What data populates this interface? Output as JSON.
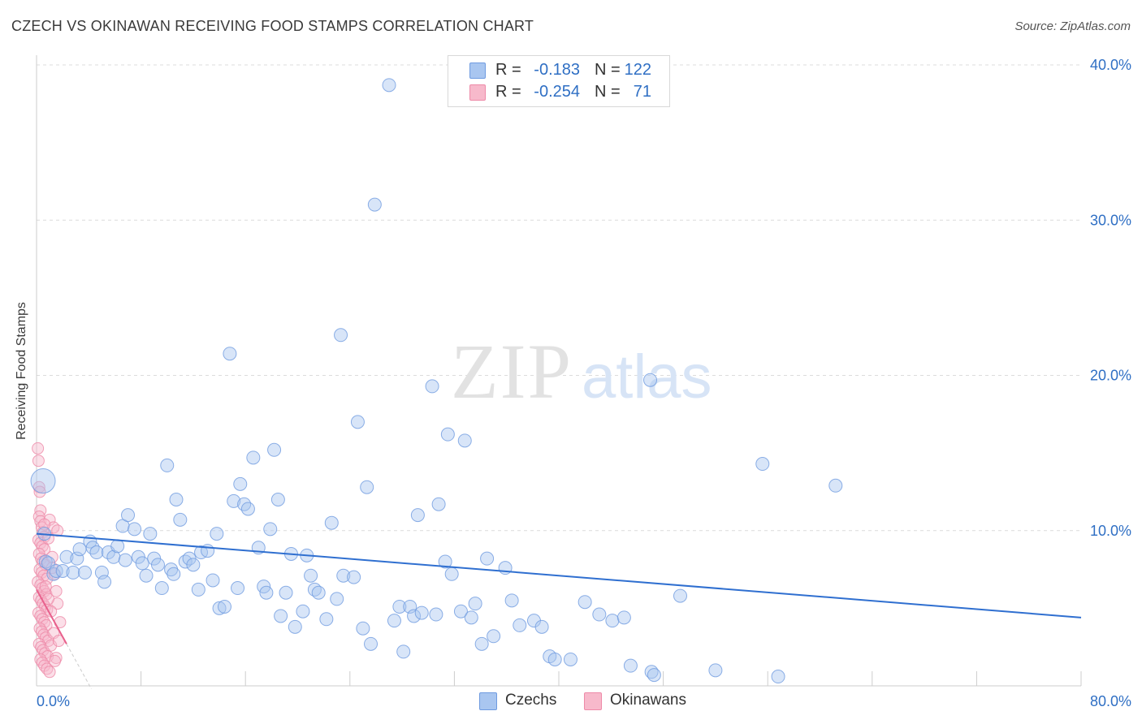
{
  "title": "CZECH VS OKINAWAN RECEIVING FOOD STAMPS CORRELATION CHART",
  "source": "Source: ZipAtlas.com",
  "watermark": {
    "zip": "ZIP",
    "atlas": "atlas"
  },
  "legend": {
    "rows": [
      {
        "r_label": "R =",
        "r_value": "-0.183",
        "n_label": "N =",
        "n_value": "122",
        "color": "#a9c6f0",
        "border": "#6f9be0"
      },
      {
        "r_label": "R =",
        "r_value": "-0.254",
        "n_label": "N =",
        "n_value": "71",
        "color": "#f7b9cb",
        "border": "#ee8aa8"
      }
    ]
  },
  "bottom_legend": [
    {
      "label": "Czechs",
      "color": "#a9c6f0",
      "border": "#6f9be0"
    },
    {
      "label": "Okinawans",
      "color": "#f7b9cb",
      "border": "#ee8aa8"
    }
  ],
  "chart_data": {
    "type": "scatter",
    "title": "CZECH VS OKINAWAN RECEIVING FOOD STAMPS CORRELATION CHART",
    "xlabel": "",
    "ylabel": "Receiving Food Stamps",
    "xlim": [
      0,
      80
    ],
    "ylim": [
      0,
      40
    ],
    "x_tick_labels": [
      "0.0%",
      "80.0%"
    ],
    "y_ticks": [
      10,
      20,
      30,
      40
    ],
    "y_tick_labels": [
      "10.0%",
      "20.0%",
      "30.0%",
      "40.0%"
    ],
    "grid": true,
    "legend_position": "top-center",
    "colors": {
      "czechs": "#6f9be0",
      "czechs_fill": "#a9c6f0",
      "czechs_line": "#2f6fd0",
      "okinawans": "#ee8aa8",
      "okinawans_fill": "#f7b9cb",
      "okinawans_line": "#e8608c",
      "axis_text": "#2f6fc4"
    },
    "series": [
      {
        "name": "Czechs",
        "trend": {
          "x": [
            0,
            80
          ],
          "y": [
            9.8,
            4.4
          ]
        },
        "points": [
          [
            0.5,
            13.2
          ],
          [
            0.6,
            9.8
          ],
          [
            0.7,
            8.0
          ],
          [
            0.9,
            7.9
          ],
          [
            1.3,
            7.2
          ],
          [
            1.5,
            7.4
          ],
          [
            2.0,
            7.4
          ],
          [
            2.3,
            8.3
          ],
          [
            2.8,
            7.3
          ],
          [
            3.1,
            8.2
          ],
          [
            3.3,
            8.8
          ],
          [
            3.7,
            7.3
          ],
          [
            4.1,
            9.3
          ],
          [
            4.3,
            8.9
          ],
          [
            4.6,
            8.6
          ],
          [
            5.0,
            7.3
          ],
          [
            5.2,
            6.7
          ],
          [
            5.5,
            8.6
          ],
          [
            5.9,
            8.3
          ],
          [
            6.2,
            9.0
          ],
          [
            6.6,
            10.3
          ],
          [
            6.8,
            8.1
          ],
          [
            7.0,
            11.0
          ],
          [
            7.5,
            10.1
          ],
          [
            7.8,
            8.3
          ],
          [
            8.1,
            7.9
          ],
          [
            8.4,
            7.1
          ],
          [
            8.7,
            9.8
          ],
          [
            9.0,
            8.2
          ],
          [
            9.3,
            7.8
          ],
          [
            9.6,
            6.3
          ],
          [
            10.0,
            14.2
          ],
          [
            10.3,
            7.5
          ],
          [
            10.5,
            7.2
          ],
          [
            10.7,
            12.0
          ],
          [
            11.0,
            10.7
          ],
          [
            11.4,
            8.0
          ],
          [
            11.7,
            8.2
          ],
          [
            12.0,
            7.8
          ],
          [
            12.4,
            6.2
          ],
          [
            12.6,
            8.6
          ],
          [
            13.1,
            8.7
          ],
          [
            13.5,
            6.8
          ],
          [
            13.8,
            9.8
          ],
          [
            14.0,
            5.0
          ],
          [
            14.4,
            5.1
          ],
          [
            14.8,
            21.4
          ],
          [
            15.1,
            11.9
          ],
          [
            15.4,
            6.3
          ],
          [
            15.6,
            13.0
          ],
          [
            15.9,
            11.7
          ],
          [
            16.2,
            11.4
          ],
          [
            16.6,
            14.7
          ],
          [
            17.0,
            8.9
          ],
          [
            17.4,
            6.4
          ],
          [
            17.6,
            6.0
          ],
          [
            17.9,
            10.1
          ],
          [
            18.2,
            15.2
          ],
          [
            18.5,
            12.0
          ],
          [
            18.7,
            4.5
          ],
          [
            19.1,
            6.0
          ],
          [
            19.5,
            8.5
          ],
          [
            19.8,
            3.8
          ],
          [
            20.4,
            4.8
          ],
          [
            20.7,
            8.4
          ],
          [
            21.0,
            7.1
          ],
          [
            21.3,
            6.2
          ],
          [
            21.6,
            6.0
          ],
          [
            22.2,
            4.3
          ],
          [
            22.6,
            10.5
          ],
          [
            23.0,
            5.6
          ],
          [
            23.5,
            7.1
          ],
          [
            24.3,
            7.0
          ],
          [
            24.6,
            17.0
          ],
          [
            25.0,
            3.7
          ],
          [
            25.3,
            12.8
          ],
          [
            25.6,
            2.7
          ],
          [
            25.9,
            31.0
          ],
          [
            27.0,
            38.7
          ],
          [
            27.4,
            4.2
          ],
          [
            27.8,
            5.1
          ],
          [
            28.1,
            2.2
          ],
          [
            28.6,
            5.1
          ],
          [
            28.9,
            4.5
          ],
          [
            29.2,
            11.0
          ],
          [
            29.5,
            4.7
          ],
          [
            30.3,
            19.3
          ],
          [
            30.6,
            4.6
          ],
          [
            30.8,
            11.7
          ],
          [
            31.3,
            8.0
          ],
          [
            31.5,
            16.2
          ],
          [
            31.8,
            7.2
          ],
          [
            32.5,
            4.8
          ],
          [
            32.8,
            15.8
          ],
          [
            33.3,
            4.4
          ],
          [
            33.6,
            5.3
          ],
          [
            34.1,
            2.7
          ],
          [
            34.5,
            8.2
          ],
          [
            35.0,
            3.2
          ],
          [
            35.9,
            7.6
          ],
          [
            36.4,
            5.5
          ],
          [
            37.0,
            3.9
          ],
          [
            38.1,
            4.2
          ],
          [
            38.7,
            3.8
          ],
          [
            39.3,
            1.9
          ],
          [
            39.7,
            1.7
          ],
          [
            40.9,
            1.7
          ],
          [
            42.0,
            5.4
          ],
          [
            43.1,
            4.6
          ],
          [
            44.1,
            4.2
          ],
          [
            45.0,
            4.4
          ],
          [
            45.5,
            1.3
          ],
          [
            47.0,
            19.7
          ],
          [
            47.1,
            0.9
          ],
          [
            47.3,
            0.7
          ],
          [
            49.3,
            5.8
          ],
          [
            52.0,
            1.0
          ],
          [
            55.6,
            14.3
          ],
          [
            56.8,
            0.6
          ],
          [
            61.2,
            12.9
          ],
          [
            23.3,
            22.6
          ]
        ]
      },
      {
        "name": "Okinawans",
        "trend": {
          "x": [
            0,
            2.3
          ],
          "y": [
            6.2,
            2.7
          ]
        },
        "trend_dash": {
          "x": [
            2.3,
            4.2
          ],
          "y": [
            2.7,
            -0.2
          ]
        },
        "points": [
          [
            0.1,
            15.3
          ],
          [
            0.15,
            14.5
          ],
          [
            0.2,
            12.8
          ],
          [
            0.25,
            12.5
          ],
          [
            0.3,
            11.3
          ],
          [
            0.2,
            10.9
          ],
          [
            0.3,
            10.6
          ],
          [
            0.4,
            10.2
          ],
          [
            0.5,
            9.9
          ],
          [
            0.6,
            9.6
          ],
          [
            0.15,
            9.4
          ],
          [
            0.3,
            9.2
          ],
          [
            0.45,
            9.0
          ],
          [
            0.6,
            8.8
          ],
          [
            0.2,
            8.5
          ],
          [
            0.35,
            8.2
          ],
          [
            0.5,
            8.0
          ],
          [
            0.7,
            7.8
          ],
          [
            0.25,
            7.5
          ],
          [
            0.4,
            7.3
          ],
          [
            0.55,
            7.1
          ],
          [
            0.8,
            6.9
          ],
          [
            0.1,
            6.7
          ],
          [
            0.3,
            6.5
          ],
          [
            0.45,
            6.3
          ],
          [
            0.6,
            6.1
          ],
          [
            0.75,
            5.9
          ],
          [
            0.2,
            5.7
          ],
          [
            0.35,
            5.5
          ],
          [
            0.5,
            5.3
          ],
          [
            0.65,
            5.1
          ],
          [
            0.8,
            4.9
          ],
          [
            0.15,
            4.7
          ],
          [
            0.3,
            4.5
          ],
          [
            0.45,
            4.3
          ],
          [
            0.6,
            4.1
          ],
          [
            0.75,
            3.9
          ],
          [
            0.25,
            3.7
          ],
          [
            0.4,
            3.5
          ],
          [
            0.55,
            3.3
          ],
          [
            0.7,
            3.1
          ],
          [
            0.9,
            2.9
          ],
          [
            0.2,
            2.7
          ],
          [
            0.35,
            2.5
          ],
          [
            0.5,
            2.3
          ],
          [
            0.65,
            2.1
          ],
          [
            0.85,
            1.9
          ],
          [
            0.3,
            1.7
          ],
          [
            0.45,
            1.5
          ],
          [
            0.6,
            1.3
          ],
          [
            0.8,
            1.1
          ],
          [
            1.0,
            0.9
          ],
          [
            1.2,
            8.3
          ],
          [
            1.4,
            7.2
          ],
          [
            1.5,
            6.1
          ],
          [
            1.6,
            5.3
          ],
          [
            1.8,
            4.1
          ],
          [
            1.3,
            3.4
          ],
          [
            1.1,
            2.6
          ],
          [
            1.5,
            1.8
          ],
          [
            1.7,
            2.9
          ],
          [
            1.0,
            10.7
          ],
          [
            1.3,
            10.2
          ],
          [
            1.6,
            10.0
          ],
          [
            0.9,
            9.5
          ],
          [
            1.1,
            4.8
          ],
          [
            0.9,
            5.6
          ],
          [
            0.7,
            6.4
          ],
          [
            1.2,
            7.6
          ],
          [
            0.6,
            10.4
          ],
          [
            1.4,
            1.6
          ]
        ]
      }
    ]
  }
}
